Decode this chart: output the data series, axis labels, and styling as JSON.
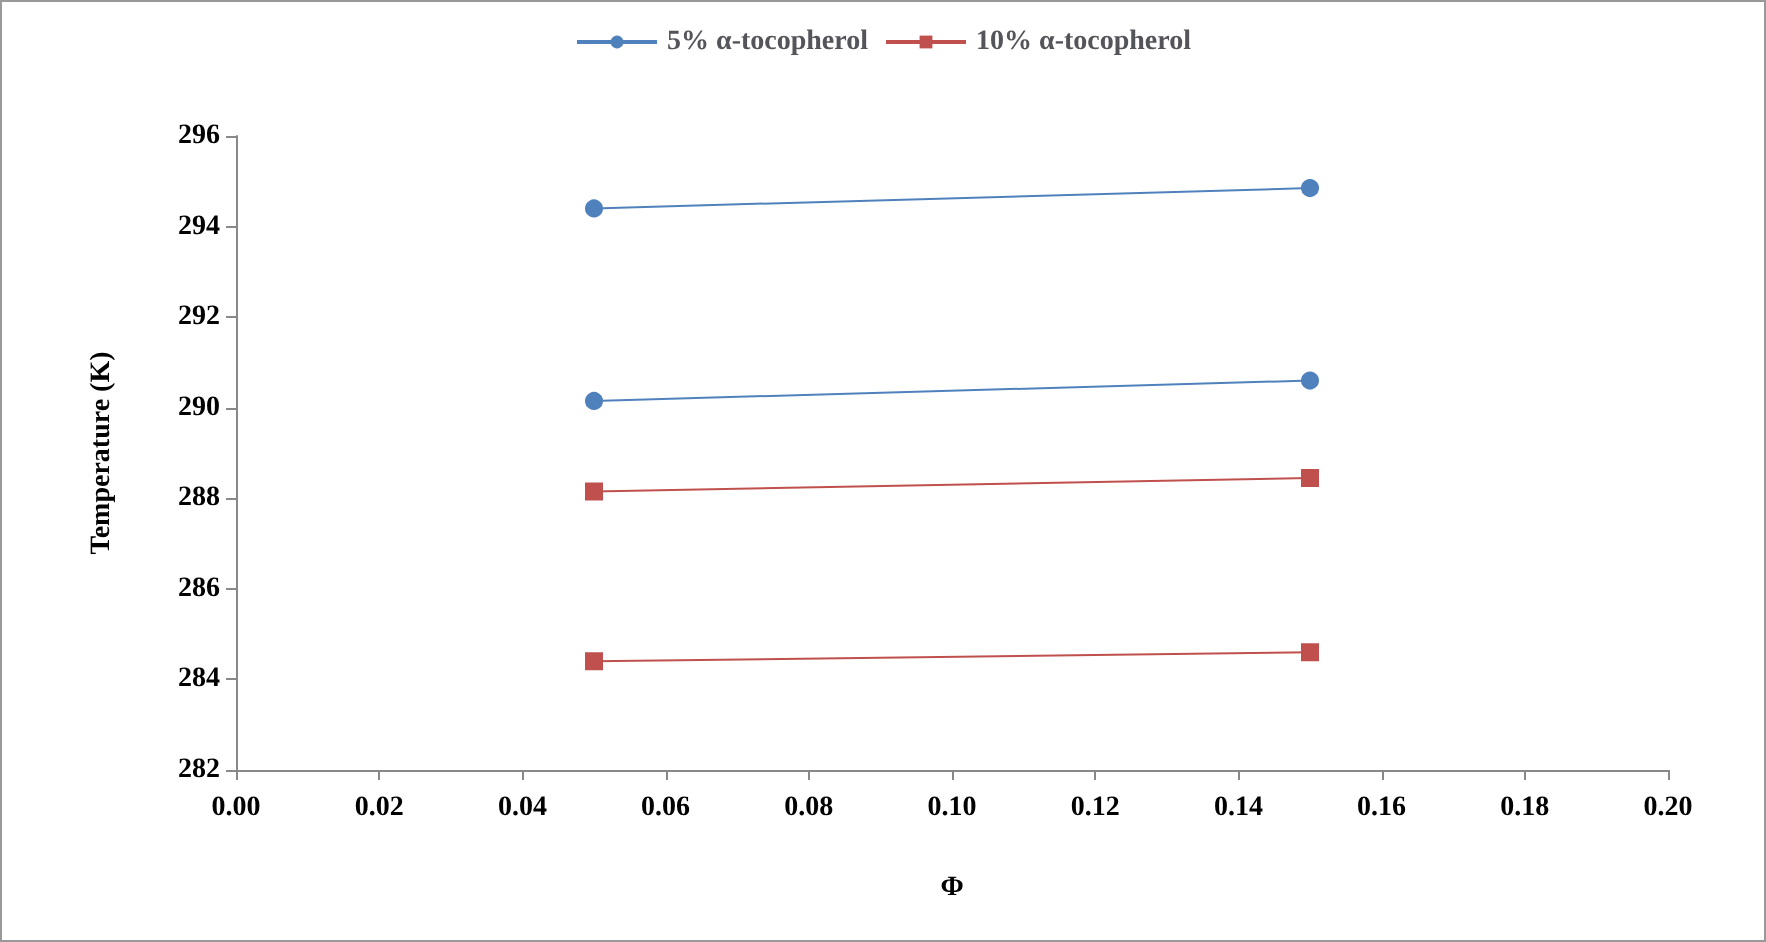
{
  "chart_data": {
    "type": "line",
    "xlabel": "Φ",
    "ylabel": "Temperature (K)",
    "xlim": [
      0,
      0.2
    ],
    "xticks": [
      {
        "value": 0,
        "label": "0.00"
      },
      {
        "value": 0.02,
        "label": "0.02"
      },
      {
        "value": 0.04,
        "label": "0.04"
      },
      {
        "value": 0.06,
        "label": "0.06"
      },
      {
        "value": 0.08,
        "label": "0.08"
      },
      {
        "value": 0.1,
        "label": "0.10"
      },
      {
        "value": 0.12,
        "label": "0.12"
      },
      {
        "value": 0.14,
        "label": "0.14"
      },
      {
        "value": 0.16,
        "label": "0.16"
      },
      {
        "value": 0.18,
        "label": "0.18"
      },
      {
        "value": 0.2,
        "label": "0.20"
      }
    ],
    "ylim": [
      282,
      296
    ],
    "yticks": [
      282,
      284,
      286,
      288,
      290,
      292,
      294,
      296
    ],
    "x": [
      0.05,
      0.15
    ],
    "series": [
      {
        "name": "5% α-tocopherol",
        "color": "#4f81bd",
        "marker": "circle",
        "values": [
          294.4,
          294.85
        ]
      },
      {
        "color": "#4f81bd",
        "marker": "circle",
        "values": [
          290.15,
          290.6
        ]
      },
      {
        "name": "10% α-tocopherol",
        "color": "#c0504d",
        "marker": "square",
        "values": [
          288.15,
          288.45
        ]
      },
      {
        "color": "#c0504d",
        "marker": "square",
        "values": [
          284.4,
          284.6
        ]
      }
    ],
    "legend": "top",
    "grid": false
  }
}
